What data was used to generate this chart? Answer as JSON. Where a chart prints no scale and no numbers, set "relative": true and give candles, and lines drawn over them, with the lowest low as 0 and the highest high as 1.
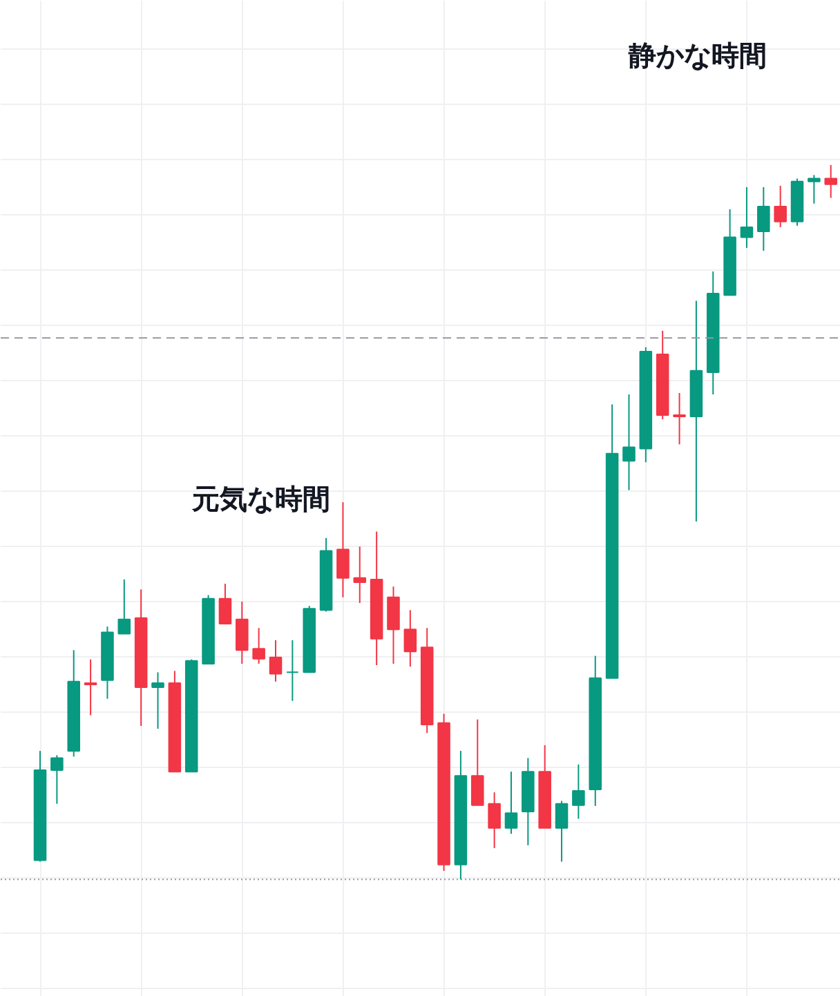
{
  "chart_data": {
    "type": "candlestick",
    "relative": true,
    "grid": true,
    "categories": [
      null,
      null,
      null,
      null,
      null,
      null,
      null,
      null,
      null,
      null,
      null,
      null,
      null,
      null,
      null,
      null,
      null,
      null,
      null,
      null,
      null,
      null,
      null,
      null,
      null,
      null,
      null,
      null,
      null,
      null,
      null,
      null,
      null,
      null,
      null,
      null,
      null,
      null,
      null,
      null,
      null,
      null,
      null,
      null,
      null,
      null,
      null,
      null
    ],
    "ohlc": [
      [
        0.027,
        0.18,
        0.025,
        0.153
      ],
      [
        0.153,
        0.174,
        0.106,
        0.17
      ],
      [
        0.18,
        0.321,
        0.172,
        0.277
      ],
      [
        0.275,
        0.308,
        0.23,
        0.273
      ],
      [
        0.279,
        0.354,
        0.253,
        0.346
      ],
      [
        0.344,
        0.42,
        0.344,
        0.364
      ],
      [
        0.366,
        0.406,
        0.215,
        0.269
      ],
      [
        0.269,
        0.29,
        0.211,
        0.275
      ],
      [
        0.275,
        0.292,
        0.151,
        0.151
      ],
      [
        0.151,
        0.308,
        0.151,
        0.306
      ],
      [
        0.302,
        0.398,
        0.302,
        0.393
      ],
      [
        0.393,
        0.414,
        0.358,
        0.358
      ],
      [
        0.364,
        0.389,
        0.302,
        0.321
      ],
      [
        0.323,
        0.352,
        0.302,
        0.309
      ],
      [
        0.311,
        0.335,
        0.277,
        0.288
      ],
      [
        0.29,
        0.335,
        0.25,
        0.29
      ],
      [
        0.29,
        0.383,
        0.29,
        0.379
      ],
      [
        0.377,
        0.478,
        0.375,
        0.46
      ],
      [
        0.462,
        0.528,
        0.395,
        0.422
      ],
      [
        0.422,
        0.466,
        0.387,
        0.416
      ],
      [
        0.42,
        0.487,
        0.3,
        0.337
      ],
      [
        0.395,
        0.41,
        0.302,
        0.35
      ],
      [
        0.35,
        0.377,
        0.298,
        0.319
      ],
      [
        0.325,
        0.352,
        0.205,
        0.217
      ],
      [
        0.219,
        0.232,
        0.012,
        0.021
      ],
      [
        0.021,
        0.18,
        0,
        0.145
      ],
      [
        0.145,
        0.224,
        0.104,
        0.104
      ],
      [
        0.106,
        0.122,
        0.044,
        0.072
      ],
      [
        0.072,
        0.151,
        0.064,
        0.093
      ],
      [
        0.095,
        0.17,
        0.048,
        0.151
      ],
      [
        0.151,
        0.188,
        0.072,
        0.072
      ],
      [
        0.072,
        0.11,
        0.025,
        0.106
      ],
      [
        0.104,
        0.161,
        0.085,
        0.124
      ],
      [
        0.126,
        0.313,
        0.103,
        0.282
      ],
      [
        0.282,
        0.665,
        0.282,
        0.596
      ],
      [
        0.586,
        0.679,
        0.545,
        0.605
      ],
      [
        0.603,
        0.745,
        0.584,
        0.739
      ],
      [
        0.735,
        0.768,
        0.644,
        0.65
      ],
      [
        0.65,
        0.681,
        0.609,
        0.648
      ],
      [
        0.648,
        0.81,
        0.501,
        0.712
      ],
      [
        0.71,
        0.851,
        0.679,
        0.82
      ],
      [
        0.818,
        0.938,
        0.818,
        0.899
      ],
      [
        0.899,
        0.969,
        0.884,
        0.913
      ],
      [
        0.907,
        0.969,
        0.88,
        0.942
      ],
      [
        0.942,
        0.971,
        0.913,
        0.921
      ],
      [
        0.921,
        0.981,
        0.915,
        0.977
      ],
      [
        0.977,
        0.986,
        0.946,
        0.981
      ],
      [
        0.981,
        1,
        0.954,
        0.973
      ]
    ],
    "colors": [
      "#089981",
      "#089981",
      "#089981",
      "#f23645",
      "#089981",
      "#089981",
      "#f23645",
      "#089981",
      "#f23645",
      "#089981",
      "#089981",
      "#f23645",
      "#f23645",
      "#f23645",
      "#f23645",
      "#089981",
      "#089981",
      "#089981",
      "#f23645",
      "#f23645",
      "#f23645",
      "#f23645",
      "#f23645",
      "#f23645",
      "#f23645",
      "#089981",
      "#f23645",
      "#f23645",
      "#089981",
      "#089981",
      "#f23645",
      "#089981",
      "#089981",
      "#089981",
      "#089981",
      "#089981",
      "#089981",
      "#f23645",
      "#f23645",
      "#089981",
      "#089981",
      "#089981",
      "#089981",
      "#089981",
      "#f23645",
      "#089981",
      "#089981",
      "#f23645"
    ],
    "ref_lines": [
      {
        "axis": "y",
        "value": 0.758,
        "color": "#9598a1",
        "line_style": "dashed"
      },
      {
        "axis": "y",
        "value": 0,
        "color": "#9598a1",
        "line_style": "dotted"
      }
    ],
    "annotations": [
      "元気な時間",
      "静かな時間"
    ]
  }
}
